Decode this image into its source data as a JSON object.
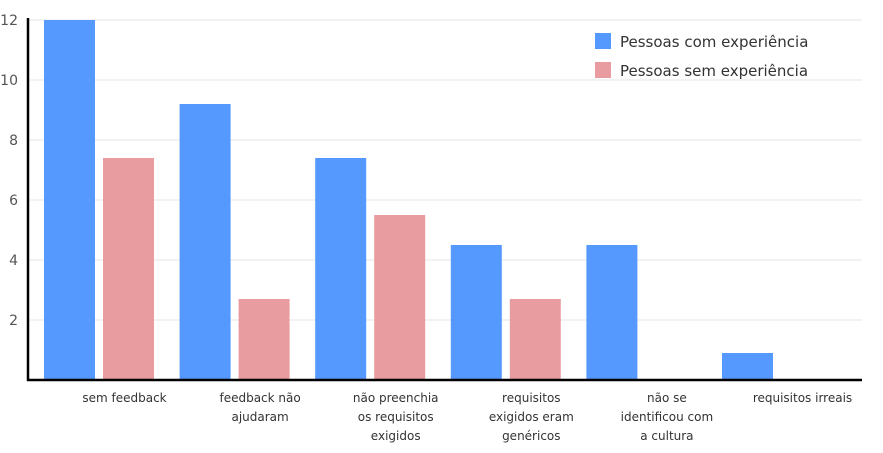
{
  "chart_data": {
    "type": "bar",
    "title": "",
    "xlabel": "",
    "ylabel": "",
    "ylim": [
      0,
      12
    ],
    "yticks": [
      2,
      4,
      6,
      8,
      10,
      12
    ],
    "grid": true,
    "legend_position": "top-right",
    "categories": [
      [
        "sem feedback"
      ],
      [
        "feedback não",
        "ajudaram"
      ],
      [
        "não preenchia",
        "os requisitos",
        "exigidos"
      ],
      [
        "requisitos",
        "exigidos eram",
        "genéricos"
      ],
      [
        "não se",
        "identificou com",
        "a cultura"
      ],
      [
        "requisitos irreais"
      ]
    ],
    "series": [
      {
        "name": "Pessoas com experiência",
        "color": "#5599ff",
        "values": [
          12,
          9.2,
          7.4,
          4.5,
          4.5,
          0.9
        ]
      },
      {
        "name": "Pessoas sem experiência",
        "color": "#e99ca0",
        "values": [
          7.4,
          2.7,
          5.5,
          2.7,
          null,
          null
        ]
      }
    ]
  }
}
